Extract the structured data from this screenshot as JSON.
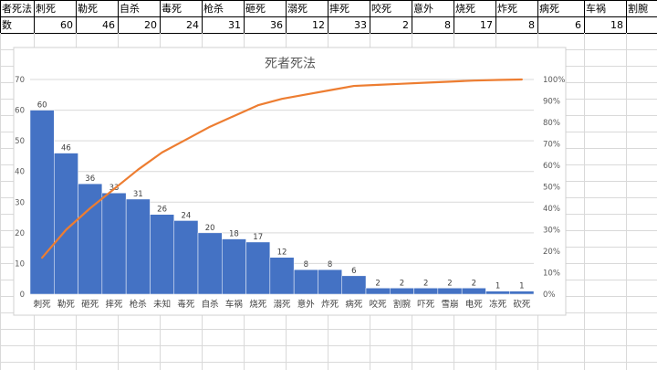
{
  "sheet": {
    "row1": [
      "者死法",
      "刺死",
      "勒死",
      "自杀",
      "毒死",
      "枪杀",
      "砸死",
      "溺死",
      "摔死",
      "咬死",
      "意外",
      "烧死",
      "炸死",
      "病死",
      "车祸",
      "割腕"
    ],
    "row2": [
      "数",
      "60",
      "46",
      "20",
      "24",
      "31",
      "36",
      "12",
      "33",
      "2",
      "8",
      "17",
      "8",
      "6",
      "18",
      ""
    ]
  },
  "chart_data": {
    "type": "bar",
    "title": "死者死法",
    "categories": [
      "刺死",
      "勒死",
      "砸死",
      "摔死",
      "枪杀",
      "未知",
      "毒死",
      "自杀",
      "车祸",
      "烧死",
      "溺死",
      "意外",
      "炸死",
      "病死",
      "咬死",
      "割腕",
      "吓死",
      "雪崩",
      "电死",
      "冻死",
      "砍死"
    ],
    "series": [
      {
        "type": "bar",
        "values": [
          60,
          46,
          36,
          33,
          31,
          26,
          24,
          20,
          18,
          17,
          12,
          8,
          8,
          6,
          2,
          2,
          2,
          2,
          2,
          1,
          1
        ]
      },
      {
        "type": "line",
        "axis": "secondary",
        "values": [
          0.17,
          0.3,
          0.4,
          0.49,
          0.58,
          0.66,
          0.72,
          0.78,
          0.83,
          0.88,
          0.91,
          0.93,
          0.95,
          0.97,
          0.975,
          0.98,
          0.985,
          0.99,
          0.995,
          0.998,
          1.0
        ]
      }
    ],
    "ylim": [
      0,
      70
    ],
    "yticks": [
      "0",
      "10",
      "20",
      "30",
      "40",
      "50",
      "60",
      "70"
    ],
    "y2lim": [
      0,
      1
    ],
    "y2ticks": [
      "0%",
      "10%",
      "20%",
      "30%",
      "40%",
      "50%",
      "60%",
      "70%",
      "80%",
      "90%",
      "100%"
    ],
    "grid": true,
    "colors": {
      "bar": "#4472c4",
      "line": "#ed7d31"
    }
  }
}
